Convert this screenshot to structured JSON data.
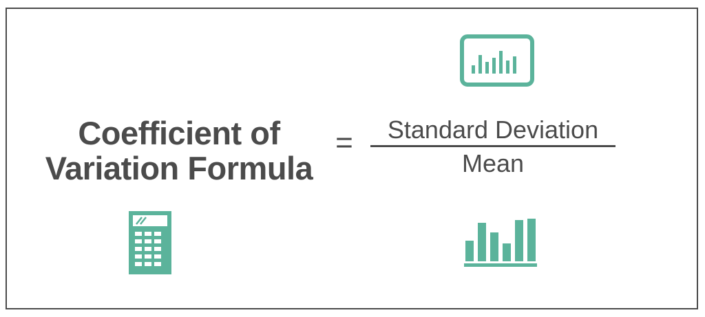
{
  "formula": {
    "title_line1": "Coefficient of",
    "title_line2": "Variation Formula",
    "equals": "=",
    "numerator": "Standard Deviation",
    "denominator": "Mean"
  },
  "icons": {
    "top_right": "chart-monitor-icon",
    "bottom_left": "calculator-icon",
    "bottom_right": "bar-chart-icon"
  },
  "colors": {
    "accent": "#5bb39b",
    "text": "#4b4b4b",
    "border": "#4a4a4a"
  }
}
